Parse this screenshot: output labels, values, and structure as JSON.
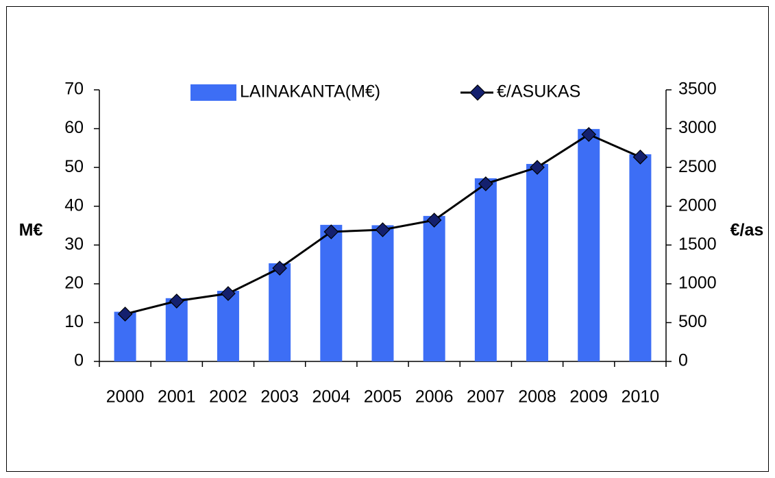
{
  "chart_data": {
    "type": "bar",
    "categories": [
      "2000",
      "2001",
      "2002",
      "2003",
      "2004",
      "2005",
      "2006",
      "2007",
      "2008",
      "2009",
      "2010"
    ],
    "series": [
      {
        "name": "LAINAKANTA(M€)",
        "type": "bar",
        "color": "#3d6ef5",
        "values": [
          12.8,
          16.3,
          18.2,
          25.3,
          35.2,
          35.1,
          37.5,
          47.2,
          50.9,
          59.9,
          53.4
        ]
      },
      {
        "name": "€/ASUKAS",
        "type": "line",
        "axis": "y2",
        "color": "#000000",
        "marker_color": "#14206e",
        "values": [
          610,
          778,
          875,
          1202,
          1670,
          1697,
          1821,
          2289,
          2501,
          2925,
          2634
        ]
      }
    ],
    "ylabel": "M€",
    "y2label": "€/as",
    "ylim": [
      0,
      70
    ],
    "yticks": [
      0,
      10,
      20,
      30,
      40,
      50,
      60,
      70
    ],
    "y2lim": [
      0,
      3500
    ],
    "y2ticks": [
      0,
      500,
      1000,
      1500,
      2000,
      2500,
      3000,
      3500
    ],
    "grid": false,
    "legend": "top"
  }
}
